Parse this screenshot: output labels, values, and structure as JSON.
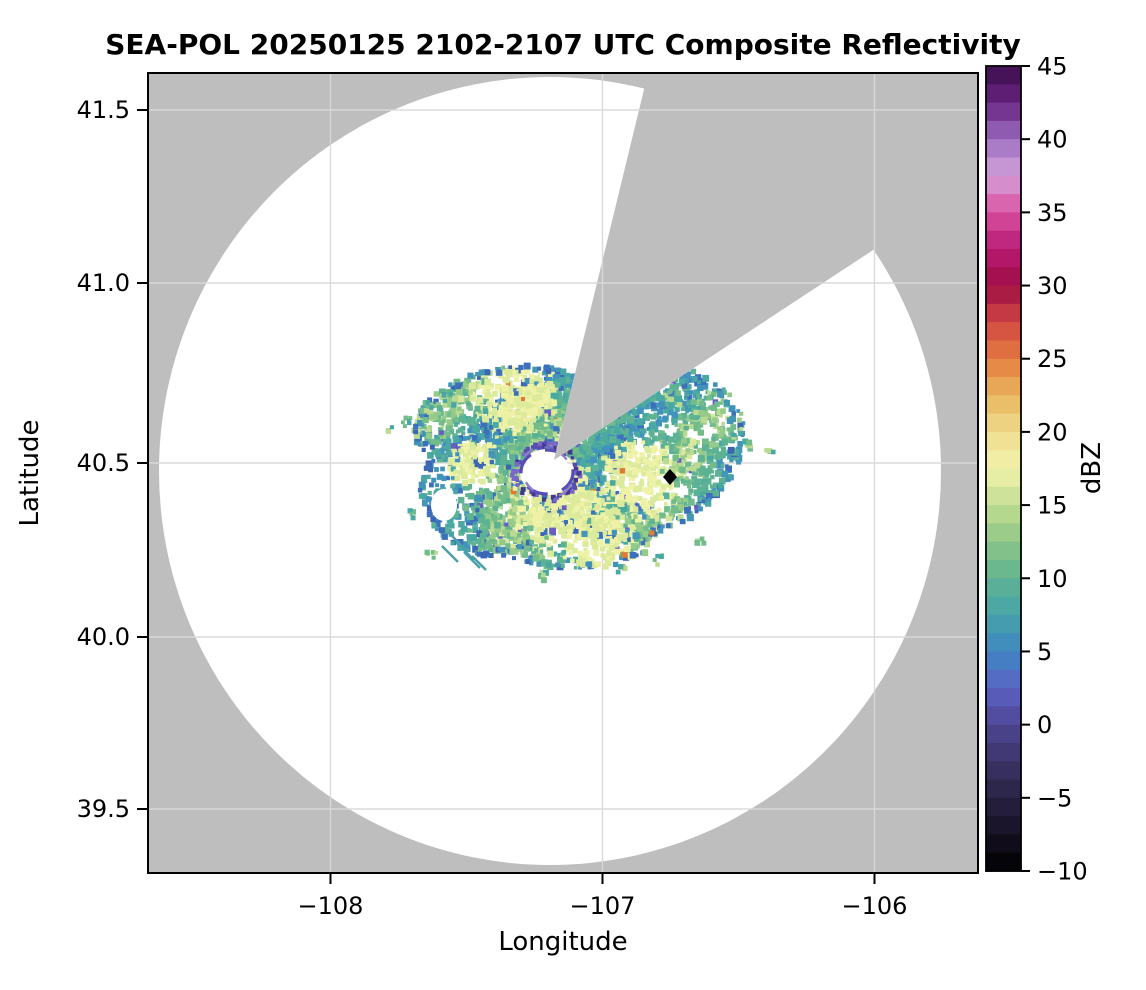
{
  "title": "SEA-POL 20250125 2102-2107 UTC Composite Reflectivity",
  "axes": {
    "xlabel": "Longitude",
    "ylabel": "Latitude",
    "x_tick_labels": [
      "−108",
      "−107",
      "−106"
    ],
    "y_tick_labels": [
      "41.5",
      "41.0",
      "40.5",
      "40.0",
      "39.5"
    ]
  },
  "colorbar": {
    "label": "dBZ",
    "tick_labels": [
      "45",
      "40",
      "35",
      "30",
      "25",
      "20",
      "15",
      "10",
      "5",
      "0",
      "−5",
      "−10"
    ]
  },
  "chart_data": {
    "type": "heatmap",
    "title": "SEA-POL 20250125 2102-2107 UTC Composite Reflectivity",
    "xlabel": "Longitude",
    "ylabel": "Latitude",
    "xlim": [
      -108.67,
      -105.62
    ],
    "ylim": [
      39.33,
      41.61
    ],
    "x_tick_values": [
      -108,
      -107,
      -106
    ],
    "y_tick_values": [
      41.5,
      41.0,
      40.5,
      40.0,
      39.5
    ],
    "grid": true,
    "colorbar": {
      "label": "dBZ",
      "range": [
        -10,
        45
      ],
      "tick_step": 5,
      "band_width_dbz": 1.25,
      "colormap_anchors": [
        [
          -10,
          "#000000"
        ],
        [
          -7.5,
          "#151021"
        ],
        [
          -5,
          "#292243"
        ],
        [
          -2.5,
          "#3c3468"
        ],
        [
          0,
          "#4f4694"
        ],
        [
          2.5,
          "#5b63c4"
        ],
        [
          5,
          "#3f87c2"
        ],
        [
          7.5,
          "#47a3a8"
        ],
        [
          10,
          "#5fb392"
        ],
        [
          12.5,
          "#8fc687"
        ],
        [
          15,
          "#c2de92"
        ],
        [
          17.5,
          "#f2f3ac"
        ],
        [
          20,
          "#eedc8c"
        ],
        [
          22.5,
          "#e9b55e"
        ],
        [
          25,
          "#e37c3f"
        ],
        [
          27.5,
          "#d24743"
        ],
        [
          30,
          "#9e0d45"
        ],
        [
          32.5,
          "#b81a74"
        ],
        [
          35,
          "#d9509e"
        ],
        [
          37.5,
          "#d4a3da"
        ],
        [
          40,
          "#9c6ec0"
        ],
        [
          42.5,
          "#682382"
        ],
        [
          45,
          "#3c0d4a"
        ]
      ]
    },
    "radar": {
      "name": "SEA-POL",
      "center_lon": -107.2,
      "center_lat": 40.47,
      "coverage_radius_deg_lon": 1.44,
      "coverage_radius_deg_lat": 1.13,
      "blocked_sector_azimuth_deg": [
        12.5,
        56.5
      ],
      "center_hole_radius_deg_lon": 0.1
    },
    "echo_region": {
      "description": "speckled light reflectivity echo (~0-20 dBZ) surrounding radar, dark blue-teal edges, pale yellow-green interior patches",
      "center_lon": -107.19,
      "center_lat": 40.47,
      "approx_radius_deg": 0.35,
      "typical_dbz_range": [
        0,
        20
      ]
    },
    "marker": {
      "shape": "diamond",
      "color": "#000000",
      "lon": -106.75,
      "lat": 40.46
    },
    "background": {
      "no_data_color": "#bebebe",
      "coverage_color": "#ffffff",
      "gridline_color": "#d9d9d9"
    }
  }
}
